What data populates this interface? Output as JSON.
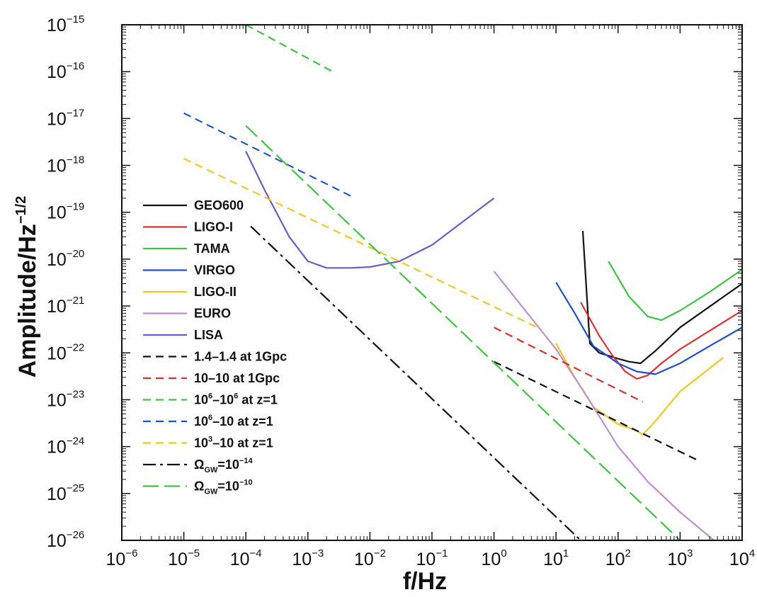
{
  "chart_data": {
    "type": "line",
    "xlabel": "f/Hz",
    "ylabel": "Amplitude/Hz",
    "ylabel_exponent": "−1/2",
    "x_scale": "log",
    "y_scale": "log",
    "xlim": [
      1e-06,
      10000.0
    ],
    "ylim": [
      1e-26,
      1e-15
    ],
    "grid": false,
    "legend_position": "left",
    "x_ticks": [
      {
        "value": 1e-06,
        "base": "10",
        "exp": "−6"
      },
      {
        "value": 1e-05,
        "base": "10",
        "exp": "−5"
      },
      {
        "value": 0.0001,
        "base": "10",
        "exp": "−4"
      },
      {
        "value": 0.001,
        "base": "10",
        "exp": "−3"
      },
      {
        "value": 0.01,
        "base": "10",
        "exp": "−2"
      },
      {
        "value": 0.1,
        "base": "10",
        "exp": "−1"
      },
      {
        "value": 1,
        "base": "10",
        "exp": "0"
      },
      {
        "value": 10,
        "base": "10",
        "exp": "1"
      },
      {
        "value": 100,
        "base": "10",
        "exp": "2"
      },
      {
        "value": 1000,
        "base": "10",
        "exp": "3"
      },
      {
        "value": 10000,
        "base": "10",
        "exp": "4"
      }
    ],
    "y_ticks": [
      {
        "value": 1e-15,
        "base": "10",
        "exp": "−15"
      },
      {
        "value": 1e-16,
        "base": "10",
        "exp": "−16"
      },
      {
        "value": 1e-17,
        "base": "10",
        "exp": "−17"
      },
      {
        "value": 1e-18,
        "base": "10",
        "exp": "−18"
      },
      {
        "value": 1e-19,
        "base": "10",
        "exp": "−19"
      },
      {
        "value": 1e-20,
        "base": "10",
        "exp": "−20"
      },
      {
        "value": 1e-21,
        "base": "10",
        "exp": "−21"
      },
      {
        "value": 1e-22,
        "base": "10",
        "exp": "−22"
      },
      {
        "value": 1e-23,
        "base": "10",
        "exp": "−23"
      },
      {
        "value": 1e-24,
        "base": "10",
        "exp": "−24"
      },
      {
        "value": 1e-25,
        "base": "10",
        "exp": "−25"
      },
      {
        "value": 1e-26,
        "base": "10",
        "exp": "−26"
      }
    ],
    "series": [
      {
        "name": "GEO600",
        "label": [
          {
            "t": "GEO600"
          }
        ],
        "color": "#111111",
        "dash": "solid",
        "points": [
          [
            27,
            4e-20
          ],
          [
            35,
            1.6e-22
          ],
          [
            50,
            1e-22
          ],
          [
            100,
            7.5e-23
          ],
          [
            150,
            6.5e-23
          ],
          [
            230,
            6e-23
          ],
          [
            400,
            1.1e-22
          ],
          [
            1000,
            3.5e-22
          ],
          [
            10000,
            3e-21
          ]
        ]
      },
      {
        "name": "LIGO-I",
        "label": [
          {
            "t": "LIGO-I"
          }
        ],
        "color": "#e03030",
        "dash": "solid",
        "points": [
          [
            25,
            1.2e-21
          ],
          [
            50,
            2.3e-22
          ],
          [
            80,
            9e-23
          ],
          [
            130,
            4e-23
          ],
          [
            200,
            2.8e-23
          ],
          [
            300,
            3.3e-23
          ],
          [
            500,
            6e-23
          ],
          [
            1000,
            1.2e-22
          ],
          [
            10000,
            8e-22
          ]
        ]
      },
      {
        "name": "TAMA",
        "label": [
          {
            "t": "TAMA"
          }
        ],
        "color": "#3ec43e",
        "dash": "solid",
        "points": [
          [
            70,
            9e-21
          ],
          [
            150,
            1.6e-21
          ],
          [
            300,
            6e-22
          ],
          [
            500,
            5e-22
          ],
          [
            1000,
            8e-22
          ],
          [
            3000,
            2e-21
          ],
          [
            10000,
            6e-21
          ]
        ]
      },
      {
        "name": "VIRGO",
        "label": [
          {
            "t": "VIRGO"
          }
        ],
        "color": "#2050d0",
        "dash": "solid",
        "points": [
          [
            10,
            3.2e-21
          ],
          [
            20,
            7e-22
          ],
          [
            40,
            1.4e-22
          ],
          [
            100,
            6e-23
          ],
          [
            200,
            4e-23
          ],
          [
            400,
            3.5e-23
          ],
          [
            1000,
            6e-23
          ],
          [
            3000,
            1.4e-22
          ],
          [
            10000,
            3.5e-22
          ]
        ]
      },
      {
        "name": "LIGO-II",
        "label": [
          {
            "t": "LIGO-II"
          }
        ],
        "color": "#f0c820",
        "dash": "solid",
        "points": [
          [
            10,
            1.6e-22
          ],
          [
            20,
            3e-23
          ],
          [
            40,
            7e-24
          ],
          [
            100,
            3e-24
          ],
          [
            200,
            2.2e-24
          ],
          [
            250,
            1.8e-24
          ],
          [
            400,
            3.5e-24
          ],
          [
            1000,
            1.5e-23
          ],
          [
            5000,
            8e-23
          ]
        ]
      },
      {
        "name": "EURO",
        "label": [
          {
            "t": "EURO"
          }
        ],
        "color": "#c08ec8",
        "dash": "solid",
        "points": [
          [
            1,
            5.5e-21
          ],
          [
            10,
            1.2e-22
          ],
          [
            30,
            1.3e-23
          ],
          [
            100,
            1e-24
          ],
          [
            300,
            1.8e-25
          ],
          [
            1000,
            4e-26
          ],
          [
            3500,
            1e-26
          ]
        ]
      },
      {
        "name": "LISA",
        "label": [
          {
            "t": "LISA"
          }
        ],
        "color": "#7058d0",
        "dash": "solid",
        "points": [
          [
            0.0001,
            2e-18
          ],
          [
            0.0002,
            3e-19
          ],
          [
            0.0005,
            3e-20
          ],
          [
            0.001,
            9e-21
          ],
          [
            0.002,
            6.5e-21
          ],
          [
            0.005,
            6.5e-21
          ],
          [
            0.01,
            6.8e-21
          ],
          [
            0.03,
            9e-21
          ],
          [
            0.1,
            2e-20
          ],
          [
            0.3,
            6e-20
          ],
          [
            1,
            2e-19
          ]
        ]
      },
      {
        "name": "1.4–1.4 at 1Gpc",
        "label": [
          {
            "t": "1.4–1.4 at 1Gpc"
          }
        ],
        "color": "#111111",
        "dash": "11 7",
        "points": [
          [
            1,
            6.5e-23
          ],
          [
            2000,
            5e-25
          ]
        ]
      },
      {
        "name": "10–10 at 1Gpc",
        "label": [
          {
            "t": "10–10 at 1Gpc"
          }
        ],
        "color": "#e03030",
        "dash": "11 7",
        "points": [
          [
            1,
            3.5e-22
          ],
          [
            250,
            9e-24
          ]
        ]
      },
      {
        "name": "10^6–10^6 at z=1",
        "label": [
          {
            "t": "10"
          },
          {
            "t": "6",
            "sup": true
          },
          {
            "t": "–10"
          },
          {
            "t": "6",
            "sup": true
          },
          {
            "t": " at z=1"
          }
        ],
        "color": "#3ec43e",
        "dash": "11 7",
        "points": [
          [
            0.0001,
            1e-15
          ],
          [
            0.0025,
            1e-16
          ]
        ]
      },
      {
        "name": "10^6–10 at z=1",
        "label": [
          {
            "t": "10"
          },
          {
            "t": "6",
            "sup": true
          },
          {
            "t": "–10 at z=1"
          }
        ],
        "color": "#2050d0",
        "dash": "11 7",
        "points": [
          [
            1e-05,
            1.3e-17
          ],
          [
            0.005,
            2.2e-19
          ]
        ]
      },
      {
        "name": "10^3–10 at z=1",
        "label": [
          {
            "t": "10"
          },
          {
            "t": "3",
            "sup": true
          },
          {
            "t": "–10 at z=1"
          }
        ],
        "color": "#f0c820",
        "dash": "11 7",
        "points": [
          [
            1e-05,
            1.4e-18
          ],
          [
            5,
            3.5e-22
          ]
        ]
      },
      {
        "name": "ΩGW=10^-14",
        "label": [
          {
            "t": "Ω"
          },
          {
            "t": "GW",
            "sub": true
          },
          {
            "t": "=10"
          },
          {
            "t": "−14",
            "sup": true
          }
        ],
        "color": "#111111",
        "dash": "18 6 4 6",
        "points": [
          [
            0.00012,
            5e-20
          ],
          [
            25,
            1e-26
          ]
        ]
      },
      {
        "name": "ΩGW=10^-10",
        "label": [
          {
            "t": "Ω"
          },
          {
            "t": "GW",
            "sub": true
          },
          {
            "t": "=10"
          },
          {
            "t": "−10",
            "sup": true
          }
        ],
        "color": "#3ec43e",
        "dash": "22 8",
        "points": [
          [
            0.0001,
            7e-18
          ],
          [
            1000,
            1e-26
          ]
        ]
      }
    ]
  }
}
